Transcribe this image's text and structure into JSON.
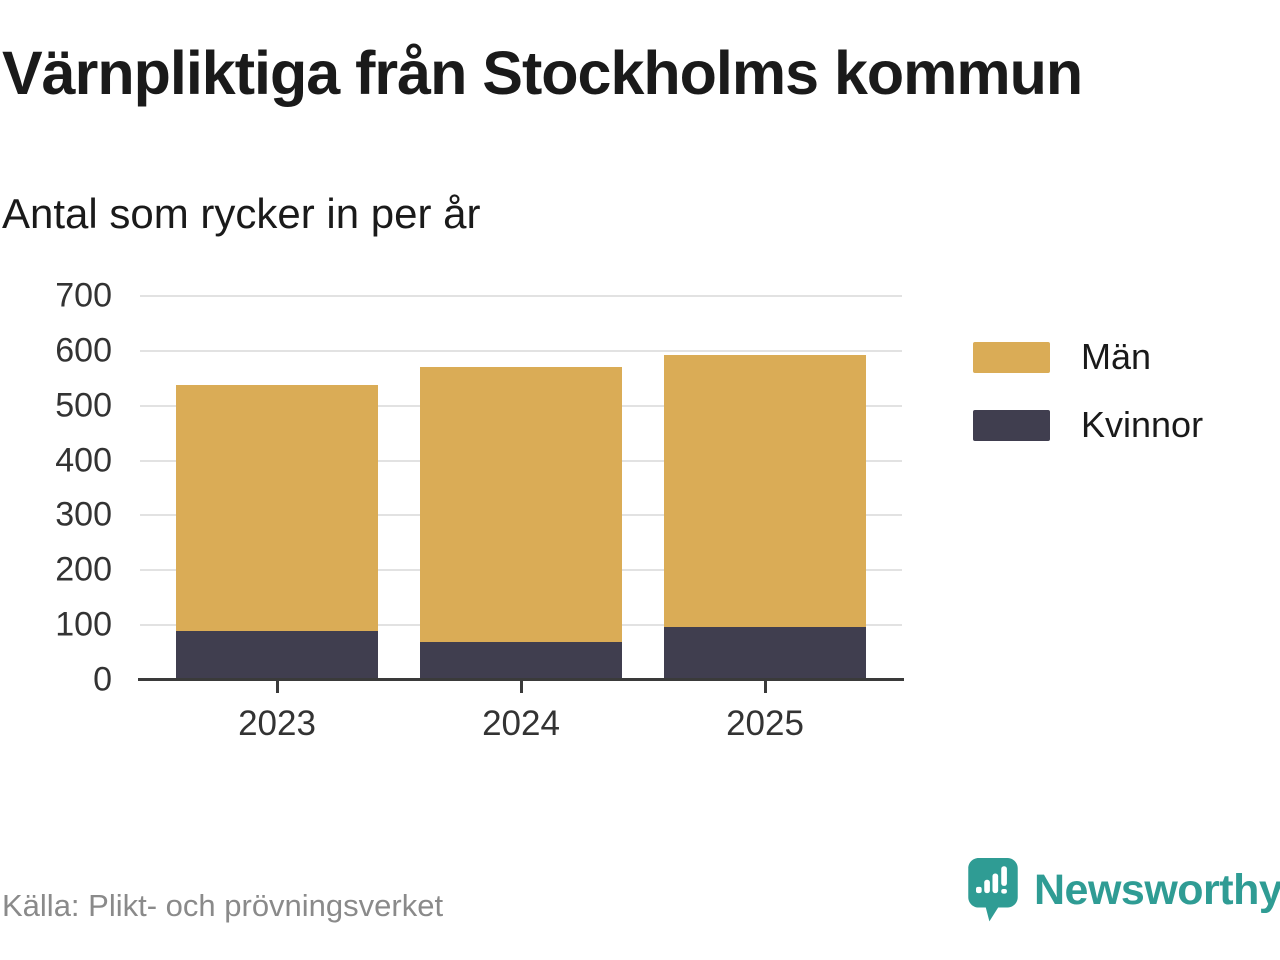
{
  "header": {
    "title": "Värnpliktiga från Stockholms kommun",
    "subtitle": "Antal som rycker in per år"
  },
  "chart_data": {
    "type": "bar",
    "stacked": true,
    "title": "Värnpliktiga från Stockholms kommun",
    "subtitle": "Antal som rycker in per år",
    "categories": [
      "2023",
      "2024",
      "2025"
    ],
    "series": [
      {
        "name": "Män",
        "key": "man",
        "color": "#daac56",
        "values": [
          447,
          500,
          497
        ]
      },
      {
        "name": "Kvinnor",
        "key": "kvinnor",
        "color": "#403e4f",
        "values": [
          90,
          70,
          96
        ]
      }
    ],
    "stack_totals": [
      537,
      570,
      593
    ],
    "ylim": [
      0,
      700
    ],
    "yticks": [
      0,
      100,
      200,
      300,
      400,
      500,
      600,
      700
    ],
    "grid": "horizontal",
    "legend_position": "right"
  },
  "legend": {
    "items": [
      {
        "label": "Män",
        "color": "#daac56"
      },
      {
        "label": "Kvinnor",
        "color": "#403e4f"
      }
    ]
  },
  "footer": {
    "source": "Källa: Plikt- och prövningsverket",
    "brand": "Newsworthy",
    "brand_icon": "newsworthy-speech-bubble-bar-chart-icon"
  },
  "colors": {
    "men_bar": "#daac56",
    "women_bar": "#403e4f",
    "axis": "#3a3a3a",
    "gridline": "#e2e2e2",
    "tick_text": "#333333",
    "title_text": "#1a1a1a",
    "source_text": "#8a8a8a",
    "brand_teal": "#2f9c94"
  }
}
